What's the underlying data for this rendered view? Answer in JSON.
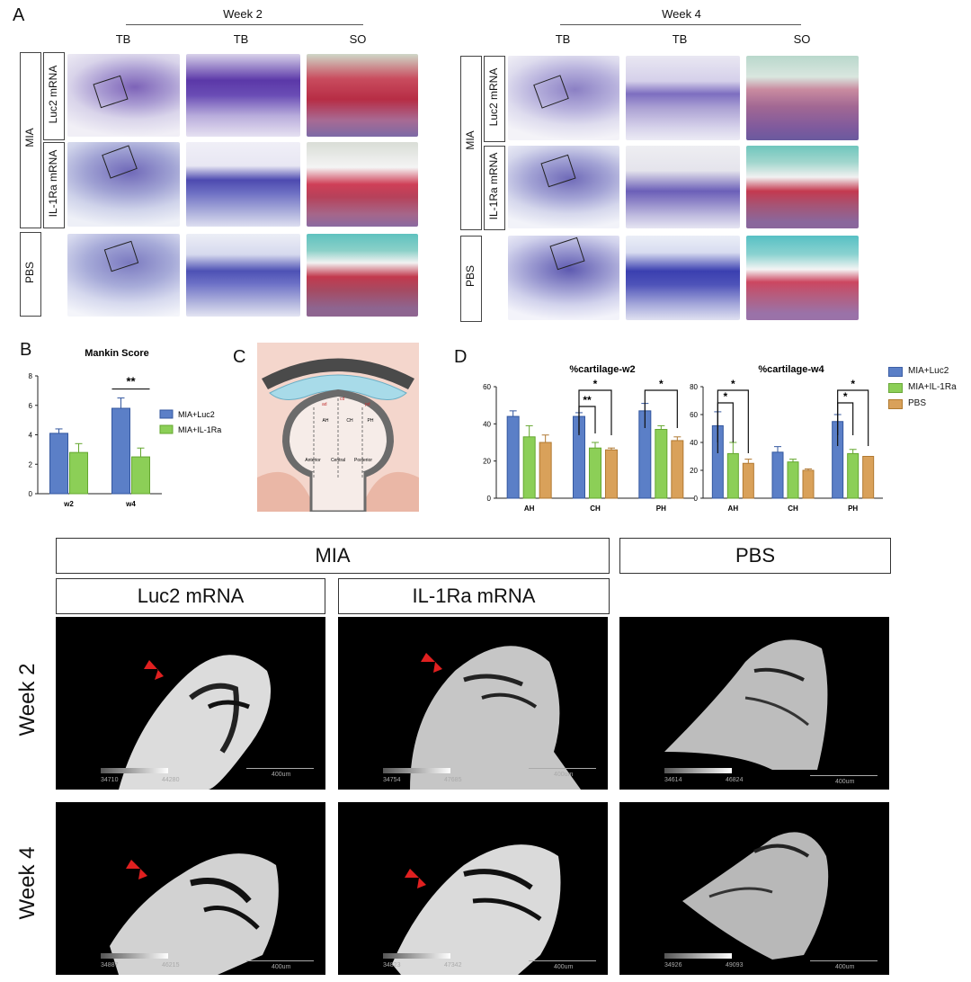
{
  "panel_a": {
    "letter": "A",
    "groups": [
      {
        "week": "Week 2",
        "columns": [
          "TB",
          "TB",
          "SO"
        ]
      },
      {
        "week": "Week 4",
        "columns": [
          "TB",
          "TB",
          "SO"
        ]
      }
    ],
    "outer_label_mia": "MIA",
    "inner_labels": [
      "Luc2 mRNA",
      "IL-1Ra mRNA"
    ],
    "outer_label_pbs": "PBS"
  },
  "panel_b": {
    "letter": "B",
    "chart_data": {
      "type": "bar",
      "title": "Mankin Score",
      "categories": [
        "w2",
        "w4"
      ],
      "ylim": [
        0,
        8
      ],
      "yticks": [
        0,
        2,
        4,
        6,
        8
      ],
      "series": [
        {
          "name": "MIA+Luc2",
          "values": [
            4.1,
            5.8
          ],
          "errors": [
            0.3,
            0.7
          ],
          "color": "#5b7fc7"
        },
        {
          "name": "MIA+IL-1Ra",
          "values": [
            2.8,
            2.5
          ],
          "errors": [
            0.6,
            0.6
          ],
          "color": "#8ccf57"
        }
      ],
      "annotations": [
        {
          "category": "w4",
          "text": "**"
        }
      ],
      "legend": "right"
    }
  },
  "panel_c": {
    "letter": "C",
    "labels": [
      "AH",
      "CH",
      "PH",
      "Anterior",
      "Central",
      "Posterior",
      "ad",
      "cd",
      "pd"
    ]
  },
  "panel_d": {
    "letter": "D",
    "legend": [
      "MIA+Luc2",
      "MIA+IL-1Ra",
      "PBS"
    ],
    "chart_data": [
      {
        "type": "bar",
        "title": "%cartilage-w2",
        "categories": [
          "AH",
          "CH",
          "PH"
        ],
        "ylim": [
          0,
          60
        ],
        "yticks": [
          0,
          20,
          40,
          60
        ],
        "series": [
          {
            "name": "MIA+Luc2",
            "values": [
              44,
              44,
              47
            ],
            "errors": [
              3,
              2,
              4
            ],
            "color": "#5b7fc7"
          },
          {
            "name": "MIA+IL-1Ra",
            "values": [
              33,
              27,
              37
            ],
            "errors": [
              6,
              3,
              2
            ],
            "color": "#8ccf57"
          },
          {
            "name": "PBS",
            "values": [
              30,
              26,
              31
            ],
            "errors": [
              4,
              1,
              2
            ],
            "color": "#d9a15a"
          }
        ],
        "annotations": [
          "**",
          "*",
          "*"
        ]
      },
      {
        "type": "bar",
        "title": "%cartilage-w4",
        "categories": [
          "AH",
          "CH",
          "PH"
        ],
        "ylim": [
          0,
          80
        ],
        "yticks": [
          0,
          20,
          40,
          60,
          80
        ],
        "series": [
          {
            "name": "MIA+Luc2",
            "values": [
              52,
              33,
              55
            ],
            "errors": [
              10,
              4,
              5
            ],
            "color": "#5b7fc7"
          },
          {
            "name": "MIA+IL-1Ra",
            "values": [
              32,
              26,
              32
            ],
            "errors": [
              8,
              2,
              3
            ],
            "color": "#8ccf57"
          },
          {
            "name": "PBS",
            "values": [
              25,
              20,
              30
            ],
            "errors": [
              3,
              1,
              0
            ],
            "color": "#d9a15a"
          }
        ],
        "annotations": [
          "*",
          "*",
          "*",
          "*"
        ]
      }
    ]
  },
  "panel_e": {
    "header_mia": "MIA",
    "header_pbs": "PBS",
    "sub_luc2": "Luc2 mRNA",
    "sub_il1ra": "IL-1Ra mRNA",
    "rows": [
      "Week 2",
      "Week 4"
    ],
    "scales": [
      [
        "34710",
        "44280",
        "400um"
      ],
      [
        "34754",
        "47685",
        "400um"
      ],
      [
        "34614",
        "46824",
        "400um"
      ],
      [
        "34887",
        "46215",
        "400um"
      ],
      [
        "34823",
        "47342",
        "400um"
      ],
      [
        "34926",
        "49093",
        "400um"
      ]
    ]
  }
}
